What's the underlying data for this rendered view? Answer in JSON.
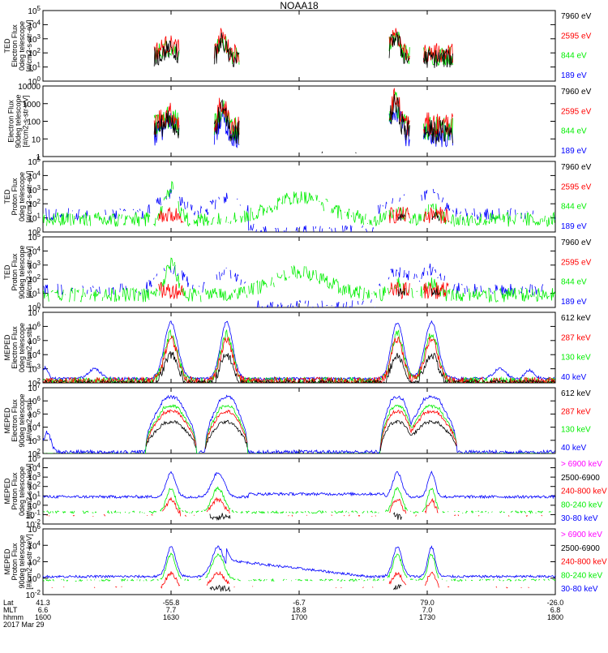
{
  "title": "NOAA18",
  "colors": {
    "black": "#000000",
    "red": "#ff0000",
    "green": "#00ee00",
    "blue": "#0000ff",
    "magenta": "#ff00ff"
  },
  "chart_data": [
    {
      "type": "line",
      "ylabel_lines": [
        "TED",
        "Electron Flux",
        "0deg telescope",
        "[#/cm2-s-str-eV]"
      ],
      "ylim": [
        1,
        100000
      ],
      "log": true,
      "tick_labels": [
        "10^0",
        "10^1",
        "10^2",
        "10^3",
        "10^4",
        "10^5"
      ],
      "tick_values": [
        1,
        10,
        100,
        1000,
        10000,
        100000
      ],
      "legend": [
        {
          "label": "7960 eV",
          "color": "black"
        },
        {
          "label": "2595 eV",
          "color": "red"
        },
        {
          "label": "844 eV",
          "color": "green"
        },
        {
          "label": "189 eV",
          "color": "blue"
        }
      ]
    },
    {
      "type": "line",
      "ylabel_lines": [
        "Electron Flux",
        "90deg telescope",
        "[#/cm2-s-str-eV]"
      ],
      "ylim": [
        1,
        10000
      ],
      "log": true,
      "tick_labels": [
        "1",
        "10",
        "100",
        "1000",
        "10000"
      ],
      "tick_values": [
        1,
        10,
        100,
        1000,
        10000
      ],
      "legend": [
        {
          "label": "7960 eV",
          "color": "black"
        },
        {
          "label": "2595 eV",
          "color": "red"
        },
        {
          "label": "844 eV",
          "color": "green"
        },
        {
          "label": "189 eV",
          "color": "blue"
        }
      ]
    },
    {
      "type": "line",
      "ylabel_lines": [
        "TED",
        "Proton Flux",
        "0deg telescope",
        "[#/cm2-s-str-eV]"
      ],
      "ylim": [
        1,
        100000
      ],
      "log": true,
      "tick_labels": [
        "10^0",
        "10^1",
        "10^2",
        "10^3",
        "10^4",
        "10^5"
      ],
      "tick_values": [
        1,
        10,
        100,
        1000,
        10000,
        100000
      ],
      "legend": [
        {
          "label": "7960 eV",
          "color": "black"
        },
        {
          "label": "2595 eV",
          "color": "red"
        },
        {
          "label": "844 eV",
          "color": "green"
        },
        {
          "label": "189 eV",
          "color": "blue"
        }
      ]
    },
    {
      "type": "line",
      "ylabel_lines": [
        "TED",
        "Proton Flux",
        "90deg telescope",
        "[#/cm2-s-str-eV]"
      ],
      "ylim": [
        1,
        100000
      ],
      "log": true,
      "tick_labels": [
        "10^0",
        "10^1",
        "10^2",
        "10^3",
        "10^4",
        "10^5"
      ],
      "tick_values": [
        1,
        10,
        100,
        1000,
        10000,
        100000
      ],
      "legend": [
        {
          "label": "7960 eV",
          "color": "black"
        },
        {
          "label": "2595 eV",
          "color": "red"
        },
        {
          "label": "844 eV",
          "color": "green"
        },
        {
          "label": "189 eV",
          "color": "blue"
        }
      ]
    },
    {
      "type": "line",
      "ylabel_lines": [
        "MEPED",
        "Electron Flux",
        "0deg telescope",
        "[#/cm2-s-str]"
      ],
      "ylim": [
        100,
        10000000
      ],
      "log": true,
      "tick_labels": [
        "10^2",
        "10^3",
        "10^4",
        "10^5",
        "10^6",
        "10^7"
      ],
      "tick_values": [
        100,
        1000,
        10000,
        100000,
        1000000,
        10000000
      ],
      "legend": [
        {
          "label": "612 keV",
          "color": "black"
        },
        {
          "label": "287 keV",
          "color": "red"
        },
        {
          "label": "130 keV",
          "color": "green"
        },
        {
          "label": "40 keV",
          "color": "blue"
        }
      ]
    },
    {
      "type": "line",
      "ylabel_lines": [
        "MEPED",
        "Electron Flux",
        "90deg telescope",
        "[#/cm2-s-str]"
      ],
      "ylim": [
        100,
        10000000
      ],
      "log": true,
      "tick_labels": [
        "10^2",
        "10^3",
        "10^4",
        "10^5",
        "10^6",
        "10^7"
      ],
      "tick_values": [
        100,
        1000,
        10000,
        100000,
        1000000,
        10000000
      ],
      "legend": [
        {
          "label": "612 keV",
          "color": "black"
        },
        {
          "label": "287 keV",
          "color": "red"
        },
        {
          "label": "130 keV",
          "color": "green"
        },
        {
          "label": "40 keV",
          "color": "blue"
        }
      ]
    },
    {
      "type": "line",
      "ylabel_lines": [
        "MEPED",
        "Proton Flux",
        "0deg telescope",
        "[#/cm2-s-str-keV]"
      ],
      "ylim": [
        0.01,
        100000
      ],
      "log": true,
      "tick_labels": [
        "10^-2",
        "10^-1",
        "10^0",
        "10^1",
        "10^2",
        "10^3",
        "10^4",
        "10^5"
      ],
      "tick_values": [
        0.01,
        0.1,
        1,
        10,
        100,
        1000,
        10000,
        100000
      ],
      "legend": [
        {
          "label": "> 6900 keV",
          "color": "magenta"
        },
        {
          "label": "2500-6900",
          "color": "black"
        },
        {
          "label": "240-800 keV",
          "color": "red"
        },
        {
          "label": "80-240 keV",
          "color": "green"
        },
        {
          "label": "30-80 keV",
          "color": "blue"
        }
      ]
    },
    {
      "type": "line",
      "ylabel_lines": [
        "MEPED",
        "Proton Flux",
        "90deg telescope",
        "[#/cm2-s-str-keV]"
      ],
      "ylim": [
        0.01,
        1000000
      ],
      "log": true,
      "tick_labels": [
        "10^-2",
        "10^0",
        "10^2",
        "10^4",
        "10^6"
      ],
      "tick_values": [
        0.01,
        1,
        100,
        10000,
        1000000
      ],
      "legend": [
        {
          "label": "> 6900 keV",
          "color": "magenta"
        },
        {
          "label": "2500-6900",
          "color": "black"
        },
        {
          "label": "240-800 keV",
          "color": "red"
        },
        {
          "label": "80-240 keV",
          "color": "green"
        },
        {
          "label": "30-80 keV",
          "color": "blue"
        }
      ]
    }
  ],
  "xaxis": {
    "row_labels": [
      "Lat",
      "MLT",
      "hhmm",
      "2017 Mar 29"
    ],
    "xlim_minutes": [
      960,
      1080
    ],
    "ticks": [
      {
        "minute": 960,
        "lat": "41.3",
        "mlt": "6.6",
        "hhmm": "1600"
      },
      {
        "minute": 990,
        "lat": "-55.8",
        "mlt": "7.7",
        "hhmm": "1630"
      },
      {
        "minute": 1020,
        "lat": "-6.7",
        "mlt": "18.8",
        "hhmm": "1700"
      },
      {
        "minute": 1050,
        "lat": "79.0",
        "mlt": "7.0",
        "hhmm": "1730"
      },
      {
        "minute": 1080,
        "lat": "-26.0",
        "mlt": "6.8",
        "hhmm": "1800"
      }
    ]
  }
}
